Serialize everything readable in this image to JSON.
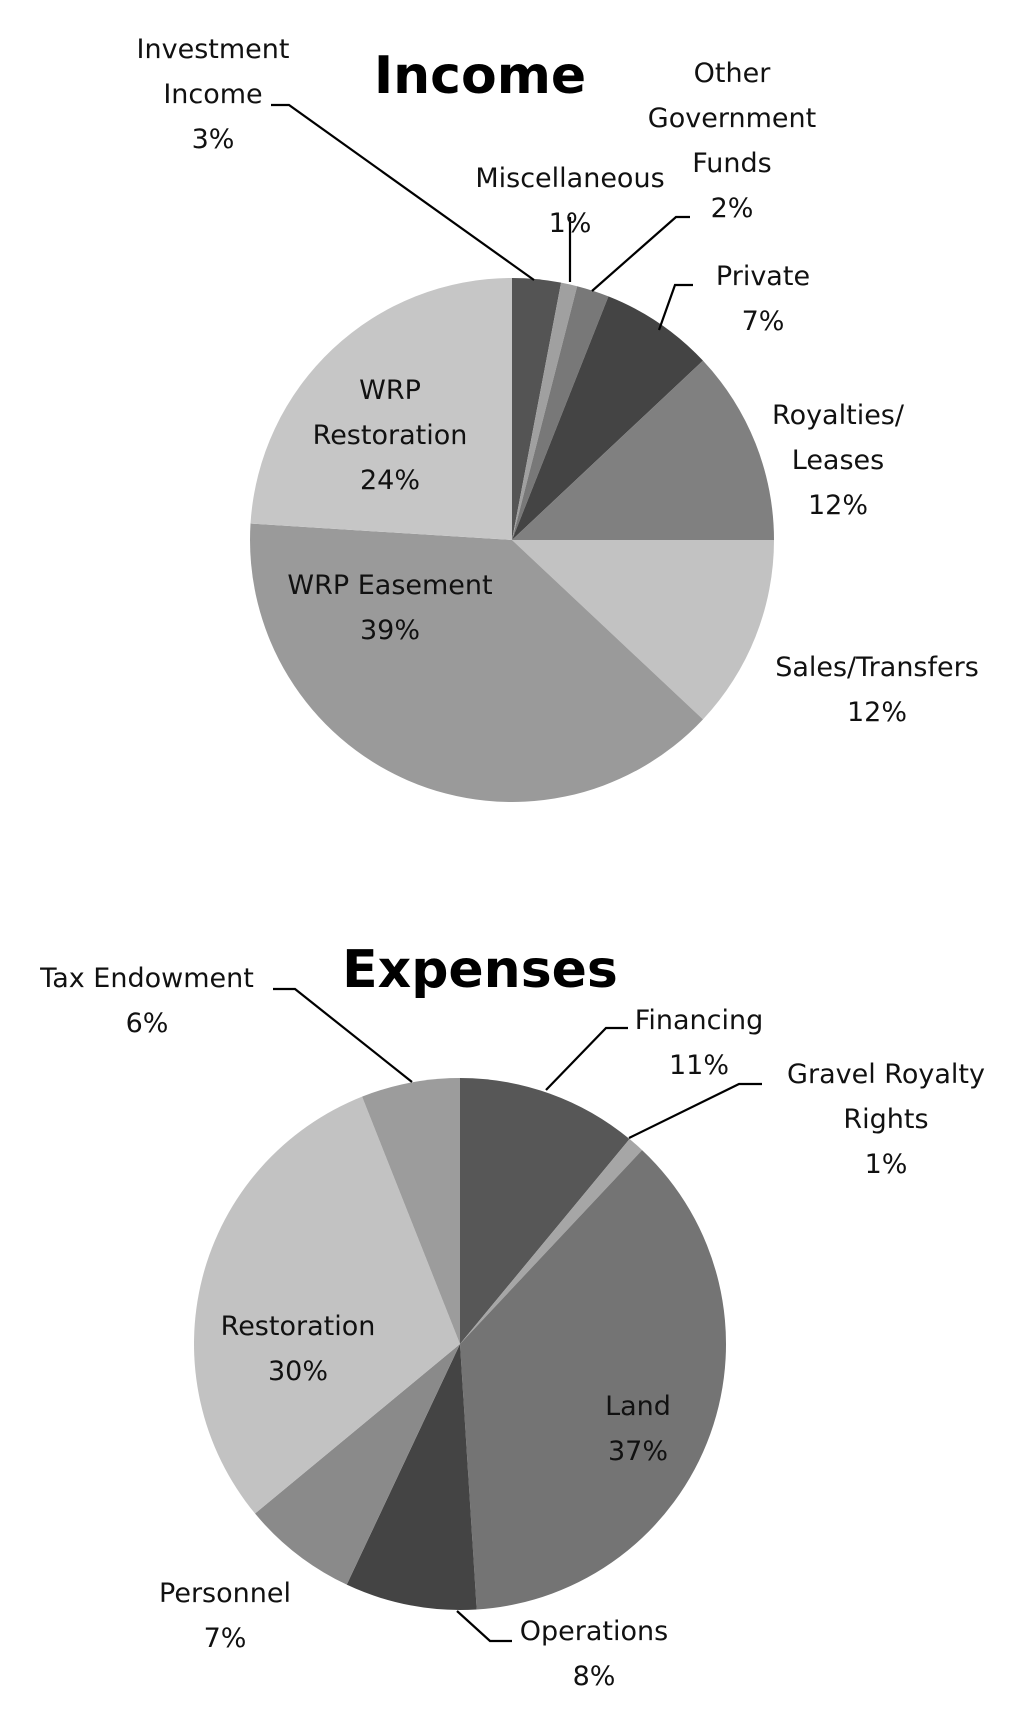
{
  "chart_data": [
    {
      "type": "pie",
      "title": "Income",
      "start_angle_deg": 0,
      "direction": "clockwise",
      "slices": [
        {
          "label": "Investment Income",
          "value": 3,
          "display": [
            "Investment",
            "Income",
            "3%"
          ],
          "color": "#545454"
        },
        {
          "label": "Miscellaneous",
          "value": 1,
          "display": [
            "Miscellaneous",
            "1%"
          ],
          "color": "#a0a0a0"
        },
        {
          "label": "Other Government Funds",
          "value": 2,
          "display": [
            "Other",
            "Government",
            "Funds",
            "2%"
          ],
          "color": "#787878"
        },
        {
          "label": "Private",
          "value": 7,
          "display": [
            "Private",
            "7%"
          ],
          "color": "#444444"
        },
        {
          "label": "Royalties/ Leases",
          "value": 12,
          "display": [
            "Royalties/",
            "Leases",
            "12%"
          ],
          "color": "#808080"
        },
        {
          "label": "Sales/Transfers",
          "value": 12,
          "display": [
            "Sales/Transfers",
            "12%"
          ],
          "color": "#c2c2c2"
        },
        {
          "label": "WRP Easement",
          "value": 39,
          "display": [
            "WRP Easement",
            "39%"
          ],
          "color": "#9a9a9a"
        },
        {
          "label": "WRP Restoration",
          "value": 24,
          "display": [
            "WRP",
            "Restoration",
            "24%"
          ],
          "color": "#c6c6c6"
        }
      ]
    },
    {
      "type": "pie",
      "title": "Expenses",
      "start_angle_deg": 0,
      "direction": "clockwise",
      "slices": [
        {
          "label": "Financing",
          "value": 11,
          "display": [
            "Financing",
            "11%"
          ],
          "color": "#575757"
        },
        {
          "label": "Gravel Royalty Rights",
          "value": 1,
          "display": [
            "Gravel Royalty",
            "Rights",
            "1%"
          ],
          "color": "#a6a6a6"
        },
        {
          "label": "Land",
          "value": 37,
          "display": [
            "Land",
            "37%"
          ],
          "color": "#747474"
        },
        {
          "label": "Operations",
          "value": 8,
          "display": [
            "Operations",
            "8%"
          ],
          "color": "#444444"
        },
        {
          "label": "Personnel",
          "value": 7,
          "display": [
            "Personnel",
            "7%"
          ],
          "color": "#8a8a8a"
        },
        {
          "label": "Restoration",
          "value": 30,
          "display": [
            "Restoration",
            "30%"
          ],
          "color": "#c2c2c2"
        },
        {
          "label": "Tax Endowment",
          "value": 6,
          "display": [
            "Tax Endowment",
            "6%"
          ],
          "color": "#9c9c9c"
        }
      ]
    }
  ]
}
